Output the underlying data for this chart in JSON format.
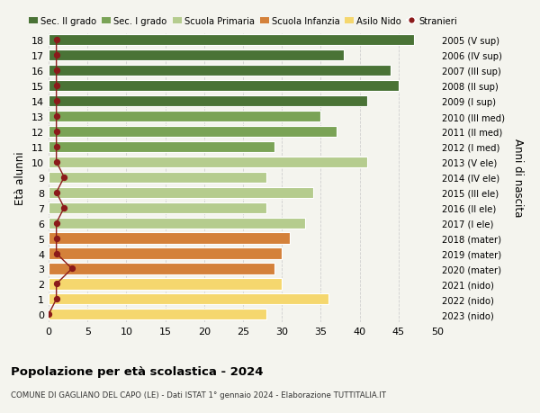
{
  "ages": [
    0,
    1,
    2,
    3,
    4,
    5,
    6,
    7,
    8,
    9,
    10,
    11,
    12,
    13,
    14,
    15,
    16,
    17,
    18
  ],
  "values": [
    28,
    36,
    30,
    29,
    30,
    31,
    33,
    28,
    34,
    28,
    41,
    29,
    37,
    35,
    41,
    45,
    44,
    38,
    47
  ],
  "stranieri": [
    0,
    1,
    1,
    3,
    1,
    1,
    1,
    2,
    1,
    2,
    1,
    1,
    1,
    1,
    1,
    1,
    1,
    1,
    1
  ],
  "right_labels": [
    "2023 (nido)",
    "2022 (nido)",
    "2021 (nido)",
    "2020 (mater)",
    "2019 (mater)",
    "2018 (mater)",
    "2017 (I ele)",
    "2016 (II ele)",
    "2015 (III ele)",
    "2014 (IV ele)",
    "2013 (V ele)",
    "2012 (I med)",
    "2011 (II med)",
    "2010 (III med)",
    "2009 (I sup)",
    "2008 (II sup)",
    "2007 (III sup)",
    "2006 (IV sup)",
    "2005 (V sup)"
  ],
  "bar_colors": [
    "#f5d76e",
    "#f5d76e",
    "#f5d76e",
    "#d4813a",
    "#d4813a",
    "#d4813a",
    "#b5cc8e",
    "#b5cc8e",
    "#b5cc8e",
    "#b5cc8e",
    "#b5cc8e",
    "#7aa356",
    "#7aa356",
    "#7aa356",
    "#4a7336",
    "#4a7336",
    "#4a7336",
    "#4a7336",
    "#4a7336"
  ],
  "legend_labels": [
    "Sec. II grado",
    "Sec. I grado",
    "Scuola Primaria",
    "Scuola Infanzia",
    "Asilo Nido",
    "Stranieri"
  ],
  "legend_colors": [
    "#4a7336",
    "#7aa356",
    "#b5cc8e",
    "#d4813a",
    "#f5d76e",
    "#8b1a1a"
  ],
  "ylabel_left": "Età alunni",
  "ylabel_right": "Anni di nascita",
  "title": "Popolazione per età scolastica - 2024",
  "subtitle": "COMUNE DI GAGLIANO DEL CAPO (LE) - Dati ISTAT 1° gennaio 2024 - Elaborazione TUTTITALIA.IT",
  "xlim": [
    0,
    50
  ],
  "xticks": [
    0,
    5,
    10,
    15,
    20,
    25,
    30,
    35,
    40,
    45,
    50
  ],
  "bg_color": "#f4f4ee",
  "stranieri_color": "#8b1a1a",
  "grid_color": "#cccccc"
}
